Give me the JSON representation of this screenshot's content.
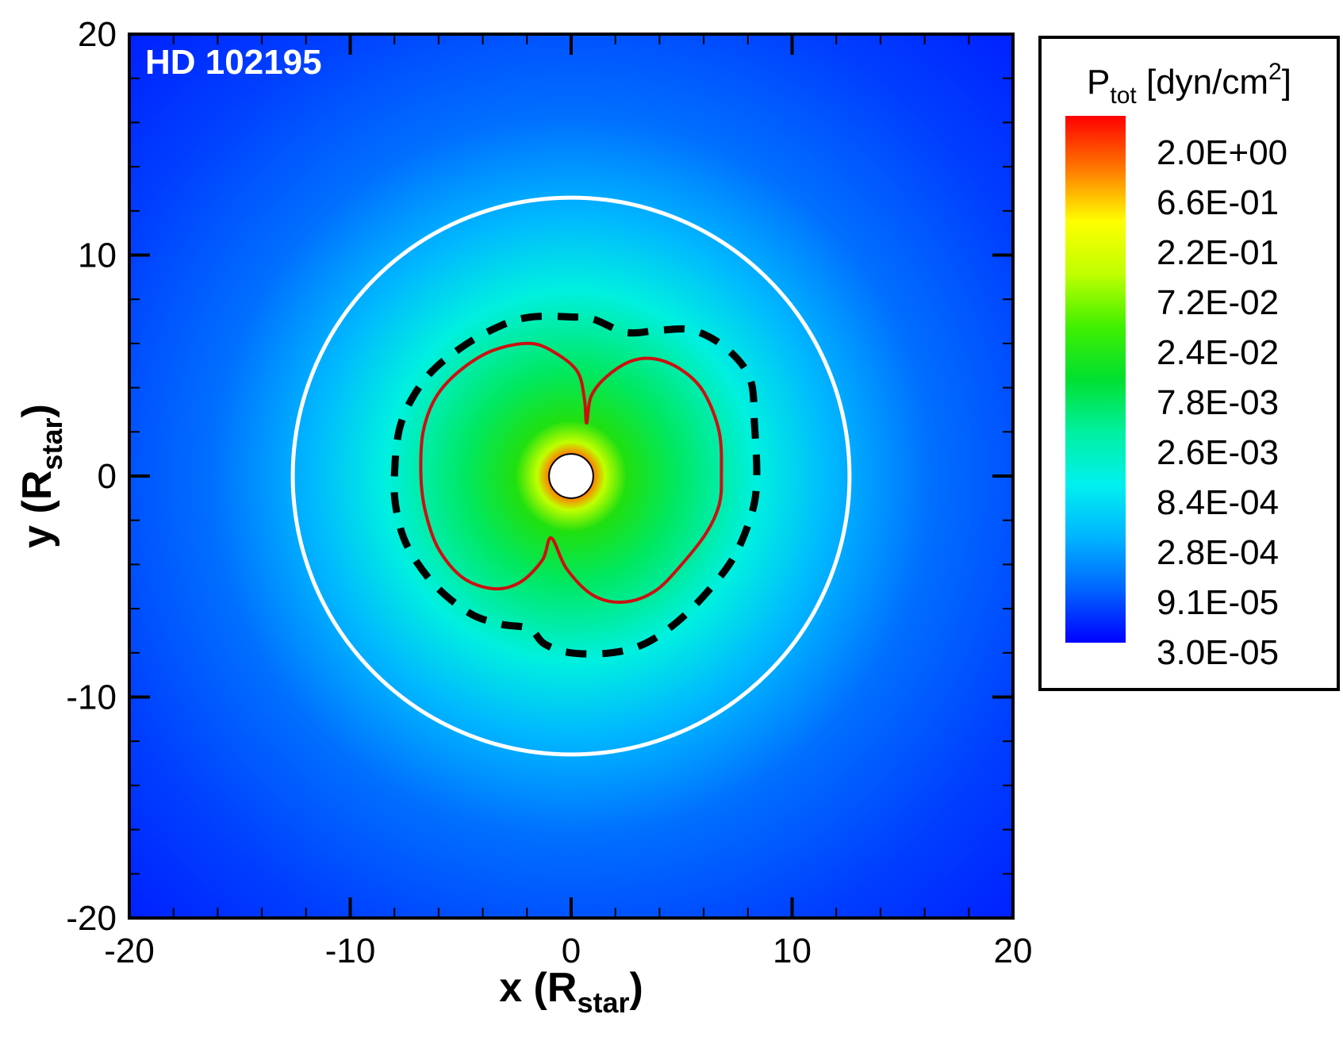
{
  "chart_data": {
    "type": "heatmap",
    "plot_label": "HD 102195",
    "xlabel": {
      "main": "x (R",
      "sub": "star",
      "close": ")"
    },
    "ylabel": {
      "main": "y (R",
      "sub": "star",
      "close": ")"
    },
    "xlim": [
      -20,
      20
    ],
    "ylim": [
      -20,
      20
    ],
    "x_ticks": [
      -20,
      -10,
      0,
      10,
      20
    ],
    "y_ticks": [
      -20,
      -10,
      0,
      10,
      20
    ],
    "x_tick_labels": [
      "-20",
      "-10",
      "0",
      "10",
      "20"
    ],
    "y_tick_labels": [
      "-20",
      "-10",
      "0",
      "10",
      "20"
    ],
    "colorbar": {
      "title": {
        "main": "P",
        "sub": "tot",
        "unit_pre": " [dyn/cm",
        "sup": "2",
        "unit_post": "]"
      },
      "levels": [
        "2.0E+00",
        "6.6E-01",
        "2.2E-01",
        "7.2E-02",
        "2.4E-02",
        "7.8E-03",
        "2.6E-03",
        "8.4E-04",
        "2.8E-04",
        "9.1E-05",
        "3.0E-05"
      ],
      "colors": [
        "#ff0000",
        "#ff7800",
        "#ffff00",
        "#c0ff00",
        "#40f000",
        "#00e030",
        "#00f0a0",
        "#00f0f0",
        "#00b4ff",
        "#0064ff",
        "#0000ff"
      ],
      "scale": "log"
    },
    "star_radius": 1,
    "white_circle_radius": 12.6,
    "red_contour": [
      [
        -6.8,
        0
      ],
      [
        -6.7,
        2
      ],
      [
        -6.1,
        3.6
      ],
      [
        -5,
        4.8
      ],
      [
        -3.5,
        5.7
      ],
      [
        -1.8,
        6
      ],
      [
        -0.6,
        5.5
      ],
      [
        0.3,
        4.7
      ],
      [
        0.6,
        3.5
      ],
      [
        0.7,
        2.4
      ],
      [
        0.9,
        3.6
      ],
      [
        1.6,
        4.5
      ],
      [
        2.7,
        5.2
      ],
      [
        3.8,
        5.3
      ],
      [
        5,
        4.8
      ],
      [
        6,
        3.8
      ],
      [
        6.7,
        2
      ],
      [
        6.8,
        0
      ],
      [
        6.7,
        -1.3
      ],
      [
        6.1,
        -2.6
      ],
      [
        5,
        -4
      ],
      [
        3.8,
        -5.2
      ],
      [
        2.4,
        -5.7
      ],
      [
        1,
        -5.4
      ],
      [
        -0.2,
        -4.2
      ],
      [
        -0.9,
        -2.8
      ],
      [
        -1.3,
        -3.8
      ],
      [
        -2.3,
        -4.8
      ],
      [
        -3.5,
        -5.1
      ],
      [
        -4.9,
        -4.6
      ],
      [
        -6,
        -3.3
      ],
      [
        -6.6,
        -1.6
      ]
    ],
    "dashed_contour": [
      [
        -8,
        0
      ],
      [
        -7.7,
        2.4
      ],
      [
        -6.6,
        4.4
      ],
      [
        -5,
        5.8
      ],
      [
        -3.2,
        6.8
      ],
      [
        -1.8,
        7.2
      ],
      [
        0,
        7.2
      ],
      [
        1,
        7.1
      ],
      [
        2.5,
        6.5
      ],
      [
        4,
        6.6
      ],
      [
        5.5,
        6.6
      ],
      [
        7,
        5.8
      ],
      [
        8.1,
        4.4
      ],
      [
        8.3,
        2.3
      ],
      [
        8.4,
        0
      ],
      [
        8.2,
        -1.6
      ],
      [
        7.4,
        -3.6
      ],
      [
        6.2,
        -5.2
      ],
      [
        4.8,
        -6.6
      ],
      [
        3.3,
        -7.6
      ],
      [
        1.8,
        -8
      ],
      [
        0,
        -8
      ],
      [
        -1.2,
        -7.6
      ],
      [
        -1.9,
        -6.9
      ],
      [
        -3.2,
        -6.7
      ],
      [
        -4.6,
        -6.2
      ],
      [
        -6.2,
        -4.9
      ],
      [
        -7.4,
        -3.2
      ],
      [
        -7.9,
        -1.6
      ]
    ]
  }
}
